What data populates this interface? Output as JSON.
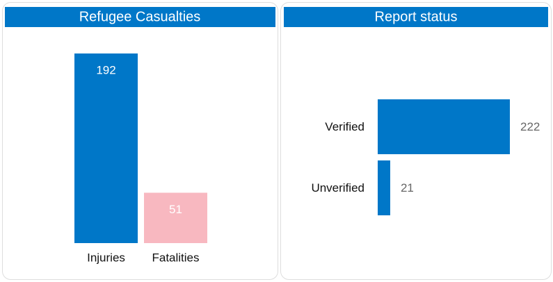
{
  "chart_data": [
    {
      "type": "bar",
      "title": "Refugee Casualties",
      "categories": [
        "Injuries",
        "Fatalities"
      ],
      "values": [
        192,
        51
      ],
      "colors": [
        "#0077c8",
        "#f8b8c0"
      ]
    },
    {
      "type": "hbar",
      "title": "Report status",
      "categories": [
        "Verified",
        "Unverified"
      ],
      "values": [
        222,
        21
      ],
      "colors": [
        "#0077c8",
        "#0077c8"
      ]
    }
  ]
}
